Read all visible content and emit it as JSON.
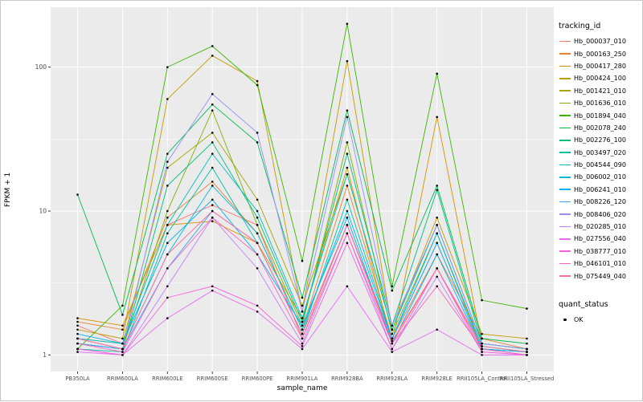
{
  "figure": {
    "panel_bg": "#EBEBEB",
    "grid_major_color": "#FFFFFF",
    "grid_minor_color": "#FFFFFF",
    "tick_color": "#333333",
    "tick_label_color": "#4D4D4D"
  },
  "legend": {
    "tracking_title": "tracking_id",
    "quant_title": "quant_status",
    "quant_items": [
      {
        "label": "OK",
        "color": "#000000"
      }
    ]
  },
  "chart_data": {
    "type": "line",
    "title": "",
    "xlabel": "sample_name",
    "ylabel": "FPKM + 1",
    "y_scale": "log10",
    "y_ticks": [
      1,
      10,
      100
    ],
    "y_tick_labels": [
      "1",
      "10",
      "100"
    ],
    "ylim_approx": [
      0.95,
      220
    ],
    "grid": true,
    "legend_position": "right",
    "point_marker": {
      "label": "OK",
      "color": "#000000"
    },
    "x_categories": [
      "PB350LA",
      "RRIM600LA",
      "RRIM600LE",
      "RRIM600SE",
      "RRIM600PE",
      "RRIM901LA",
      "RRIM928BA",
      "RRIM928LA",
      "RRIM928LE",
      "RRII105LA_Control",
      "RRII105LA_Stressed"
    ],
    "series": [
      {
        "name": "Hb_000037_010",
        "color": "#F8766D",
        "values": [
          1.6,
          1.2,
          8,
          11,
          8,
          1.3,
          8,
          1.2,
          4,
          1.1,
          1.05
        ]
      },
      {
        "name": "Hb_000163_250",
        "color": "#EA8331",
        "values": [
          1.7,
          1.5,
          9,
          16,
          7,
          1.5,
          15,
          1.3,
          5,
          1.3,
          1.1
        ]
      },
      {
        "name": "Hb_000417_280",
        "color": "#D89000",
        "values": [
          1.8,
          1.6,
          8,
          8.5,
          6,
          1.8,
          20,
          1.2,
          45,
          1.2,
          1.1
        ]
      },
      {
        "name": "Hb_000424_100",
        "color": "#C09B00",
        "values": [
          1.5,
          1.3,
          60,
          120,
          80,
          2.0,
          110,
          1.5,
          9,
          1.4,
          1.3
        ]
      },
      {
        "name": "Hb_001421_010",
        "color": "#A3A500",
        "values": [
          1.3,
          1.2,
          20,
          35,
          12,
          2.2,
          18,
          1.5,
          8,
          1.2,
          1.1
        ]
      },
      {
        "name": "Hb_001636_010",
        "color": "#7CAE00",
        "values": [
          1.2,
          1.1,
          10,
          50,
          8,
          1.6,
          30,
          1.4,
          7,
          1.1,
          1.05
        ]
      },
      {
        "name": "Hb_001894_040",
        "color": "#39B600",
        "values": [
          1.1,
          2.2,
          100,
          140,
          75,
          4.5,
          200,
          3.0,
          90,
          2.4,
          2.1
        ]
      },
      {
        "name": "Hb_002078_240",
        "color": "#00BB4E",
        "values": [
          13,
          1.9,
          25,
          55,
          30,
          2.5,
          50,
          2.8,
          15,
          1.3,
          1.2
        ]
      },
      {
        "name": "Hb_002276_100",
        "color": "#00BF7D",
        "values": [
          1.2,
          1.1,
          15,
          30,
          9,
          1.7,
          25,
          1.6,
          14,
          1.2,
          1.1
        ]
      },
      {
        "name": "Hb_003497_020",
        "color": "#00C1A3",
        "values": [
          1.1,
          1.05,
          7,
          20,
          6,
          1.4,
          12,
          1.3,
          6,
          1.1,
          1.05
        ]
      },
      {
        "name": "Hb_004544_090",
        "color": "#00BFC4",
        "values": [
          1.3,
          1.2,
          8,
          25,
          10,
          1.8,
          18,
          1.5,
          8,
          1.2,
          1.1
        ]
      },
      {
        "name": "Hb_006002_010",
        "color": "#00BAE0",
        "values": [
          1.2,
          1.1,
          5,
          15,
          7,
          1.5,
          10,
          1.3,
          7,
          1.15,
          1.05
        ]
      },
      {
        "name": "Hb_006241_010",
        "color": "#00B0F6",
        "values": [
          1.4,
          1.2,
          6,
          12,
          5,
          1.6,
          9,
          1.2,
          5,
          1.1,
          1.05
        ]
      },
      {
        "name": "Hb_008226_120",
        "color": "#35A2FF",
        "values": [
          1.2,
          1.1,
          4,
          10,
          6,
          1.4,
          8,
          1.3,
          6,
          1.1,
          1.0
        ]
      },
      {
        "name": "Hb_008406_020",
        "color": "#9590FF",
        "values": [
          1.3,
          1.1,
          22,
          65,
          35,
          2.0,
          45,
          1.6,
          8,
          1.2,
          1.1
        ]
      },
      {
        "name": "Hb_020285_010",
        "color": "#C77CFF",
        "values": [
          1.1,
          1.0,
          3,
          9,
          4,
          1.2,
          7,
          1.1,
          3.5,
          1.05,
          1.0
        ]
      },
      {
        "name": "Hb_027556_040",
        "color": "#E76BF3",
        "values": [
          1.05,
          1.0,
          1.8,
          2.8,
          2.0,
          1.1,
          3,
          1.05,
          1.5,
          1.0,
          1.0
        ]
      },
      {
        "name": "Hb_038777_010",
        "color": "#FA62DB",
        "values": [
          1.1,
          1.0,
          2.5,
          3.0,
          2.2,
          1.15,
          6,
          1.1,
          4,
          1.05,
          1.0
        ]
      },
      {
        "name": "Hb_046101_010",
        "color": "#FF62BC",
        "values": [
          1.2,
          1.05,
          4,
          9,
          5,
          1.3,
          7,
          1.2,
          3,
          1.1,
          1.0
        ]
      },
      {
        "name": "Hb_075449_040",
        "color": "#FF6A98",
        "values": [
          1.3,
          1.1,
          5,
          10,
          6,
          1.4,
          8,
          1.25,
          4,
          1.15,
          1.05
        ]
      }
    ]
  }
}
